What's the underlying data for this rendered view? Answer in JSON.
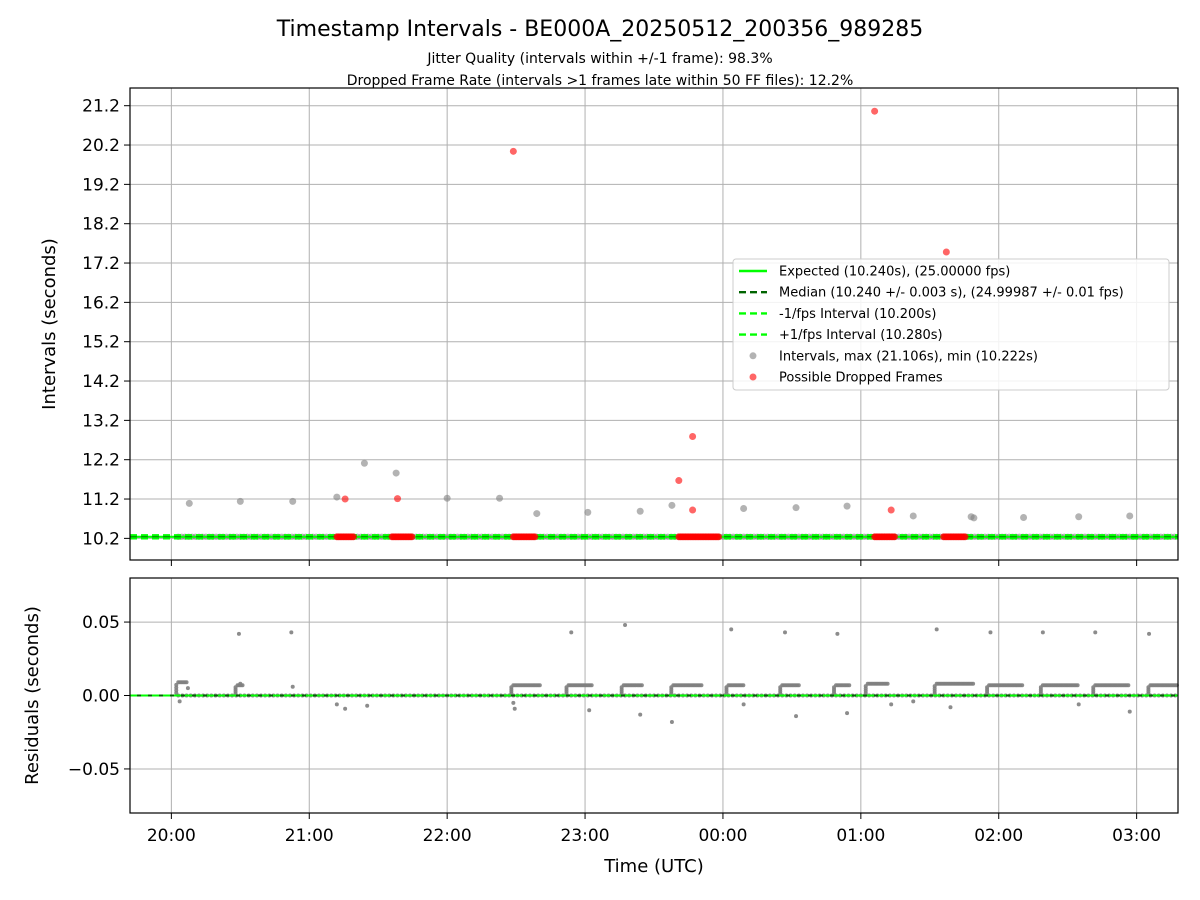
{
  "title": "Timestamp Intervals - BE000A_20250512_200356_989285",
  "subtitle_line1": "Jitter Quality (intervals within +/-1 frame): 98.3%",
  "subtitle_line2": "Dropped Frame Rate (intervals >1 frames late within 50 FF files): 12.2%",
  "colors": {
    "expected": "#00ff00",
    "median": "#006400",
    "interval_band": "#00ff00",
    "intervals": "#808080",
    "dropped": "#ff0000",
    "residuals": "#808080"
  },
  "chart_data": [
    {
      "type": "scatter",
      "name": "intervals-panel",
      "xlabel": "",
      "ylabel": "Intervals (seconds)",
      "x_unit": "hours since 20:00 UTC",
      "xlim": [
        -0.3,
        7.3
      ],
      "ylim": [
        9.65,
        21.65
      ],
      "yticks": [
        10.2,
        11.2,
        12.2,
        13.2,
        14.2,
        15.2,
        16.2,
        17.2,
        18.2,
        19.2,
        20.2,
        21.2
      ],
      "ytick_labels": [
        "10.2",
        "11.2",
        "12.2",
        "13.2",
        "14.2",
        "15.2",
        "16.2",
        "17.2",
        "18.2",
        "19.2",
        "20.2",
        "21.2"
      ],
      "grid": true,
      "legend_position": "center-right",
      "reference_lines": [
        {
          "label": "Expected (10.240s), (25.00000 fps)",
          "y": 10.24,
          "style": "solid"
        },
        {
          "label": "Median (10.240 +/- 0.003 s), (24.99987 +/- 0.01 fps)",
          "y": 10.24,
          "style": "dashed"
        },
        {
          "label": "-1/fps Interval (10.200s)",
          "y": 10.2,
          "style": "dashed"
        },
        {
          "label": "+1/fps Interval (10.280s)",
          "y": 10.28,
          "style": "dashed"
        }
      ],
      "series": [
        {
          "name": "Intervals, max (21.106s), min (10.222s)",
          "marker": "circle",
          "points": [
            [
              0.13,
              11.09
            ],
            [
              0.5,
              11.14
            ],
            [
              0.88,
              11.14
            ],
            [
              1.2,
              11.25
            ],
            [
              1.4,
              12.11
            ],
            [
              1.63,
              11.86
            ],
            [
              2.0,
              11.22
            ],
            [
              2.38,
              11.22
            ],
            [
              2.65,
              10.83
            ],
            [
              3.02,
              10.86
            ],
            [
              3.4,
              10.89
            ],
            [
              3.63,
              11.04
            ],
            [
              4.15,
              10.96
            ],
            [
              4.53,
              10.98
            ],
            [
              4.9,
              11.02
            ],
            [
              5.38,
              10.77
            ],
            [
              5.8,
              10.75
            ],
            [
              5.82,
              10.72
            ],
            [
              6.18,
              10.73
            ],
            [
              6.58,
              10.75
            ],
            [
              6.95,
              10.77
            ]
          ],
          "band_from": 0.05,
          "band_to": 7.3,
          "band_value": 10.24
        },
        {
          "name": "Possible Dropped Frames",
          "marker": "circle",
          "points": [
            [
              1.26,
              11.2
            ],
            [
              1.64,
              11.21
            ],
            [
              2.48,
              20.04
            ],
            [
              3.68,
              11.67
            ],
            [
              3.78,
              10.92
            ],
            [
              3.78,
              12.79
            ],
            [
              5.1,
              21.06
            ],
            [
              5.22,
              10.92
            ],
            [
              5.62,
              17.48
            ]
          ],
          "clusters": [
            {
              "x_start": 1.2,
              "x_end": 1.32,
              "y": 10.24
            },
            {
              "x_start": 1.6,
              "x_end": 1.75,
              "y": 10.24
            },
            {
              "x_start": 2.48,
              "x_end": 2.64,
              "y": 10.24
            },
            {
              "x_start": 3.68,
              "x_end": 3.98,
              "y": 10.24
            },
            {
              "x_start": 5.1,
              "x_end": 5.25,
              "y": 10.24
            },
            {
              "x_start": 5.6,
              "x_end": 5.76,
              "y": 10.24
            }
          ]
        }
      ]
    },
    {
      "type": "scatter",
      "name": "residuals-panel",
      "xlabel": "Time (UTC)",
      "ylabel": "Residuals (seconds)",
      "x_unit": "hours since 20:00 UTC",
      "xlim": [
        -0.3,
        7.3
      ],
      "ylim": [
        -0.08,
        0.08
      ],
      "yticks": [
        -0.05,
        0.0,
        0.05
      ],
      "ytick_labels": [
        "−0.05",
        "0.00",
        "0.05"
      ],
      "xticks": [
        0,
        1,
        2,
        3,
        4,
        5,
        6,
        7
      ],
      "xtick_labels": [
        "20:00",
        "21:00",
        "22:00",
        "23:00",
        "00:00",
        "01:00",
        "02:00",
        "03:00"
      ],
      "grid": true,
      "reference_lines": [
        {
          "y": 0.0,
          "style": "solid"
        },
        {
          "y": 0.0,
          "style": "dashed"
        }
      ],
      "series": [
        {
          "name": "Residuals",
          "marker": "circle",
          "outliers": [
            [
              0.49,
              0.042
            ],
            [
              0.87,
              0.043
            ],
            [
              2.9,
              0.043
            ],
            [
              3.29,
              0.048
            ],
            [
              4.06,
              0.045
            ],
            [
              4.45,
              0.043
            ],
            [
              4.83,
              0.042
            ],
            [
              5.55,
              0.045
            ],
            [
              5.94,
              0.043
            ],
            [
              6.32,
              0.043
            ],
            [
              6.7,
              0.043
            ],
            [
              7.09,
              0.042
            ],
            [
              1.2,
              -0.006
            ],
            [
              1.26,
              -0.009
            ],
            [
              1.42,
              -0.007
            ],
            [
              2.48,
              -0.005
            ],
            [
              2.49,
              -0.009
            ],
            [
              3.03,
              -0.01
            ],
            [
              3.4,
              -0.013
            ],
            [
              3.63,
              -0.018
            ],
            [
              4.15,
              -0.006
            ],
            [
              4.53,
              -0.014
            ],
            [
              4.9,
              -0.012
            ],
            [
              5.22,
              -0.006
            ],
            [
              5.38,
              -0.004
            ],
            [
              5.65,
              -0.008
            ],
            [
              6.58,
              -0.006
            ],
            [
              6.95,
              -0.011
            ],
            [
              0.06,
              -0.004
            ],
            [
              0.12,
              0.005
            ],
            [
              0.5,
              0.008
            ],
            [
              0.88,
              0.006
            ]
          ],
          "steps": [
            {
              "x_start": 0.05,
              "x_end": 0.12,
              "y": 0.009
            },
            {
              "x_start": 0.48,
              "x_end": 0.52,
              "y": 0.007
            },
            {
              "x_start": 2.48,
              "x_end": 2.68,
              "y": 0.007
            },
            {
              "x_start": 2.88,
              "x_end": 3.05,
              "y": 0.007
            },
            {
              "x_start": 3.28,
              "x_end": 3.42,
              "y": 0.007
            },
            {
              "x_start": 3.64,
              "x_end": 3.85,
              "y": 0.007
            },
            {
              "x_start": 4.04,
              "x_end": 4.15,
              "y": 0.007
            },
            {
              "x_start": 4.43,
              "x_end": 4.55,
              "y": 0.007
            },
            {
              "x_start": 4.82,
              "x_end": 4.92,
              "y": 0.007
            },
            {
              "x_start": 5.05,
              "x_end": 5.2,
              "y": 0.008
            },
            {
              "x_start": 5.55,
              "x_end": 5.82,
              "y": 0.008
            },
            {
              "x_start": 5.93,
              "x_end": 6.18,
              "y": 0.007
            },
            {
              "x_start": 6.32,
              "x_end": 6.58,
              "y": 0.007
            },
            {
              "x_start": 6.7,
              "x_end": 6.95,
              "y": 0.007
            },
            {
              "x_start": 7.1,
              "x_end": 7.3,
              "y": 0.007
            }
          ],
          "baseline_from": 0.05,
          "baseline_to": 7.3,
          "baseline_value": 0.0
        }
      ]
    }
  ]
}
